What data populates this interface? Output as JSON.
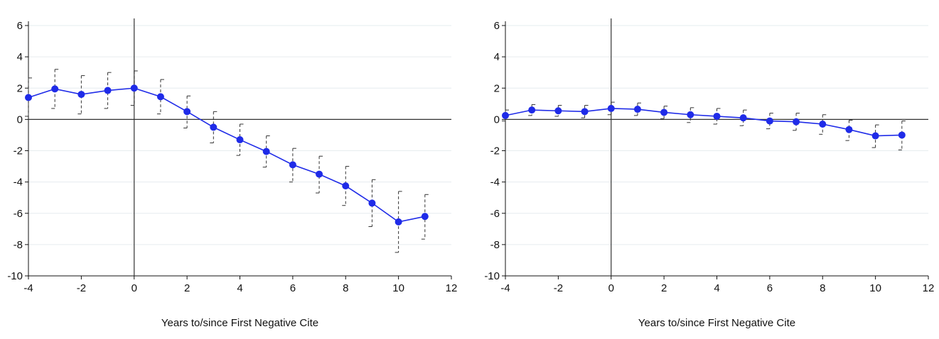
{
  "chart_data": [
    {
      "type": "line",
      "xlabel": "Years to/since First Negative Cite",
      "ylabel": "",
      "xlim": [
        -4,
        12
      ],
      "ylim": [
        -10,
        6
      ],
      "xticks": [
        -4,
        -2,
        0,
        2,
        4,
        6,
        8,
        10,
        12
      ],
      "yticks": [
        -10,
        -8,
        -6,
        -4,
        -2,
        0,
        2,
        4,
        6
      ],
      "grid": true,
      "error_bars": "dashed confidence intervals",
      "reference_lines": {
        "x": 0,
        "y": 0
      },
      "color": "#1f2be8",
      "series": [
        {
          "x": [
            -4,
            -3,
            -2,
            -1,
            0,
            1,
            2,
            3,
            4,
            5,
            6,
            7,
            8,
            9,
            10,
            11
          ],
          "y": [
            1.4,
            1.95,
            1.6,
            1.85,
            2.0,
            1.45,
            0.5,
            -0.5,
            -1.3,
            -2.05,
            -2.9,
            -3.5,
            -4.25,
            -5.35,
            -6.55,
            -6.2
          ],
          "ci_low": [
            0.2,
            0.7,
            0.35,
            0.7,
            0.9,
            0.35,
            -0.55,
            -1.5,
            -2.3,
            -3.05,
            -4.0,
            -4.7,
            -5.5,
            -6.85,
            -8.5,
            -7.65
          ],
          "ci_high": [
            2.65,
            3.2,
            2.8,
            3.0,
            3.1,
            2.55,
            1.5,
            0.5,
            -0.3,
            -1.05,
            -1.85,
            -2.35,
            -3.0,
            -3.85,
            -4.6,
            -4.8
          ]
        }
      ]
    },
    {
      "type": "line",
      "xlabel": "Years to/since First Negative Cite",
      "ylabel": "",
      "xlim": [
        -4,
        12
      ],
      "ylim": [
        -10,
        6
      ],
      "xticks": [
        -4,
        -2,
        0,
        2,
        4,
        6,
        8,
        10,
        12
      ],
      "yticks": [
        -10,
        -8,
        -6,
        -4,
        -2,
        0,
        2,
        4,
        6
      ],
      "grid": true,
      "error_bars": "dashed confidence intervals",
      "reference_lines": {
        "x": 0,
        "y": 0
      },
      "color": "#1f2be8",
      "series": [
        {
          "x": [
            -4,
            -3,
            -2,
            -1,
            0,
            1,
            2,
            3,
            4,
            5,
            6,
            7,
            8,
            9,
            10,
            11
          ],
          "y": [
            0.25,
            0.6,
            0.55,
            0.5,
            0.7,
            0.65,
            0.45,
            0.3,
            0.2,
            0.1,
            -0.1,
            -0.15,
            -0.3,
            -0.65,
            -1.05,
            -1.0
          ],
          "ci_low": [
            -0.1,
            0.25,
            0.2,
            0.1,
            0.3,
            0.25,
            0.05,
            -0.2,
            -0.3,
            -0.4,
            -0.6,
            -0.7,
            -0.95,
            -1.35,
            -1.8,
            -1.95
          ],
          "ci_high": [
            0.6,
            0.95,
            0.9,
            0.9,
            1.1,
            1.05,
            0.85,
            0.75,
            0.7,
            0.6,
            0.4,
            0.4,
            0.3,
            -0.05,
            -0.35,
            -0.1
          ]
        }
      ]
    }
  ]
}
